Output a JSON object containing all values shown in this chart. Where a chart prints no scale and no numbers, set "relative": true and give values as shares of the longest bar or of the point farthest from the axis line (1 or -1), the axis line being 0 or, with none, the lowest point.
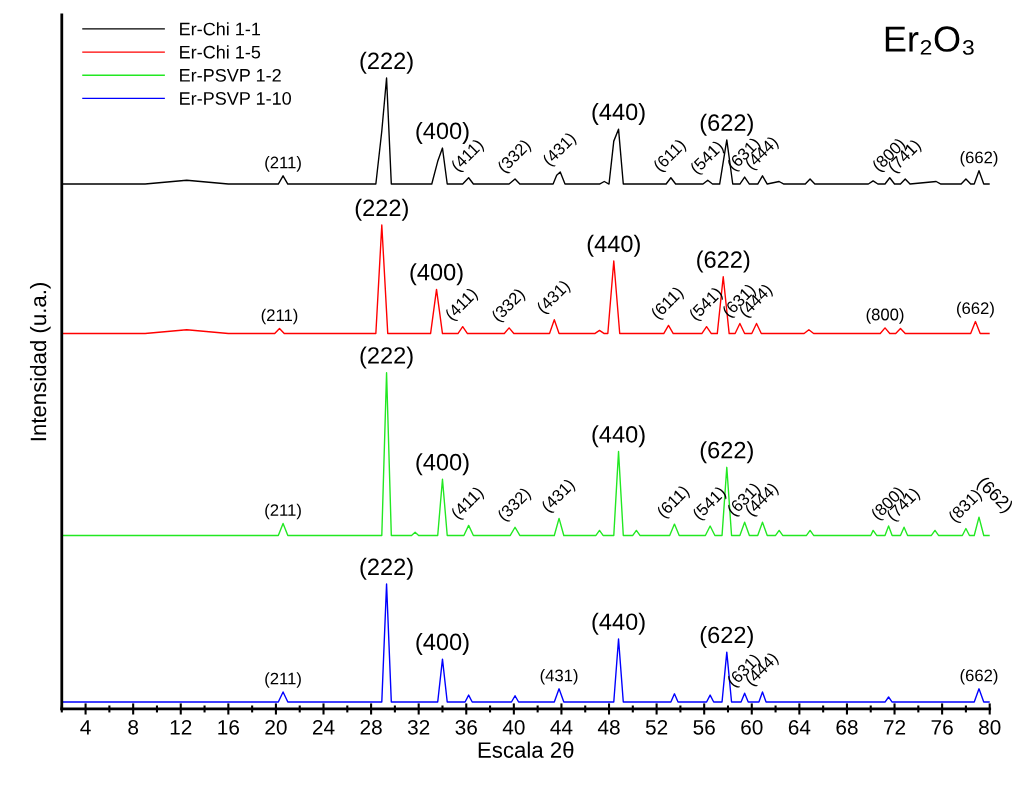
{
  "chart_data": {
    "type": "line",
    "title": "Er₂O₃",
    "xlabel": "Escala 2θ",
    "ylabel": "Intensidad (u.a.)",
    "relative": true,
    "tick_labels": "x",
    "legend": "top left",
    "grid": false,
    "marker": "none",
    "line_style": "solid",
    "xlim": [
      2,
      80
    ],
    "xticks": [
      {
        "value": 2,
        "label": null
      },
      4,
      {
        "value": 6,
        "label": null
      },
      8,
      {
        "value": 10,
        "label": null
      },
      12,
      {
        "value": 14,
        "label": null
      },
      16,
      {
        "value": 18,
        "label": null
      },
      20,
      {
        "value": 22,
        "label": null
      },
      24,
      {
        "value": 26,
        "label": null
      },
      28,
      {
        "value": 30,
        "label": null
      },
      32,
      {
        "value": 34,
        "label": null
      },
      36,
      {
        "value": 38,
        "label": null
      },
      40,
      {
        "value": 42,
        "label": null
      },
      44,
      {
        "value": 46,
        "label": null
      },
      48,
      {
        "value": 50,
        "label": null
      },
      52,
      {
        "value": 54,
        "label": null
      },
      56,
      {
        "value": 58,
        "label": null
      },
      60,
      {
        "value": 62,
        "label": null
      },
      64,
      {
        "value": 66,
        "label": null
      },
      68,
      {
        "value": 70,
        "label": null
      },
      72,
      {
        "value": 74,
        "label": null
      },
      76,
      {
        "value": 78,
        "label": null
      },
      80
    ],
    "series": [
      {
        "name": "Er-Chi 1-1",
        "color": "#000000",
        "x": [
          2,
          9,
          12.5,
          16,
          20.2,
          20.6,
          21.0,
          28.4,
          28.9,
          29.3,
          29.7,
          33.1,
          33.6,
          34.0,
          34.4,
          35.7,
          36.2,
          36.6,
          39.6,
          40.1,
          40.5,
          43.3,
          43.6,
          43.9,
          44.3,
          47.2,
          47.6,
          48.0,
          48.4,
          48.8,
          49.2,
          52.8,
          53.2,
          53.6,
          55.9,
          56.3,
          56.7,
          57.3,
          57.9,
          58.4,
          59.0,
          59.4,
          59.8,
          60.5,
          60.9,
          61.3,
          62.3,
          62.7,
          64.5,
          64.9,
          65.3,
          69.8,
          70.2,
          70.6,
          71.2,
          71.6,
          72.0,
          72.5,
          72.9,
          73.3,
          75.5,
          75.9,
          77.6,
          78.0,
          78.4,
          78.7,
          79.1,
          79.5,
          80
        ],
        "values": [
          0.832,
          0.832,
          0.838,
          0.832,
          0.832,
          0.845,
          0.832,
          0.832,
          0.916,
          1.0,
          0.832,
          0.832,
          0.868,
          0.889,
          0.832,
          0.832,
          0.842,
          0.832,
          0.832,
          0.84,
          0.832,
          0.832,
          0.846,
          0.851,
          0.832,
          0.832,
          0.836,
          0.832,
          0.9,
          0.919,
          0.832,
          0.832,
          0.842,
          0.832,
          0.832,
          0.838,
          0.832,
          0.832,
          0.902,
          0.832,
          0.832,
          0.843,
          0.832,
          0.832,
          0.845,
          0.832,
          0.836,
          0.832,
          0.832,
          0.84,
          0.832,
          0.832,
          0.837,
          0.832,
          0.832,
          0.842,
          0.832,
          0.832,
          0.84,
          0.832,
          0.836,
          0.832,
          0.832,
          0.84,
          0.832,
          0.832,
          0.853,
          0.832,
          0.832
        ]
      },
      {
        "name": "Er-Chi 1-5",
        "color": "#ff0000",
        "x": [
          2,
          9,
          12.5,
          16,
          19.9,
          20.3,
          20.7,
          28.4,
          28.9,
          29.4,
          33.0,
          33.5,
          34.0,
          35.3,
          35.7,
          36.1,
          39.2,
          39.6,
          40.0,
          43.0,
          43.4,
          43.8,
          46.8,
          47.2,
          47.6,
          47.9,
          48.4,
          48.9,
          52.6,
          53.0,
          53.4,
          55.8,
          56.2,
          56.6,
          57.1,
          57.6,
          58.1,
          58.6,
          59.0,
          59.4,
          60.0,
          60.4,
          60.8,
          64.4,
          64.8,
          65.2,
          70.8,
          71.2,
          71.6,
          72.1,
          72.5,
          72.9,
          78.4,
          78.8,
          79.2,
          80
        ],
        "values": [
          0.595,
          0.595,
          0.601,
          0.595,
          0.595,
          0.603,
          0.595,
          0.595,
          0.767,
          0.595,
          0.595,
          0.665,
          0.595,
          0.595,
          0.606,
          0.595,
          0.595,
          0.604,
          0.595,
          0.595,
          0.617,
          0.595,
          0.595,
          0.6,
          0.595,
          0.595,
          0.71,
          0.595,
          0.595,
          0.608,
          0.595,
          0.595,
          0.606,
          0.595,
          0.595,
          0.685,
          0.595,
          0.595,
          0.611,
          0.595,
          0.595,
          0.611,
          0.595,
          0.595,
          0.601,
          0.595,
          0.595,
          0.604,
          0.595,
          0.595,
          0.603,
          0.595,
          0.595,
          0.614,
          0.595,
          0.595
        ]
      },
      {
        "name": "Er-PSVP 1-2",
        "color": "#22e822",
        "x": [
          2,
          20.2,
          20.6,
          21.0,
          28.9,
          29.3,
          29.7,
          31.4,
          31.7,
          32.0,
          33.6,
          34.0,
          34.4,
          35.8,
          36.2,
          36.6,
          39.7,
          40.1,
          40.5,
          43.4,
          43.8,
          44.2,
          46.9,
          47.2,
          47.5,
          48.4,
          48.8,
          49.2,
          50.0,
          50.3,
          50.6,
          53.1,
          53.5,
          53.9,
          56.1,
          56.5,
          56.9,
          57.5,
          57.9,
          58.3,
          59.0,
          59.4,
          59.8,
          60.5,
          60.9,
          61.3,
          62.0,
          62.3,
          62.6,
          64.6,
          64.9,
          65.2,
          70.0,
          70.2,
          70.5,
          71.2,
          71.5,
          71.8,
          72.5,
          72.8,
          73.1,
          75.1,
          75.4,
          75.7,
          77.7,
          78.0,
          78.3,
          78.7,
          79.1,
          79.5,
          80
        ],
        "values": [
          0.275,
          0.275,
          0.294,
          0.275,
          0.275,
          0.533,
          0.275,
          0.275,
          0.28,
          0.275,
          0.275,
          0.364,
          0.275,
          0.275,
          0.291,
          0.275,
          0.275,
          0.288,
          0.275,
          0.275,
          0.302,
          0.275,
          0.275,
          0.283,
          0.275,
          0.275,
          0.408,
          0.275,
          0.275,
          0.283,
          0.275,
          0.275,
          0.293,
          0.275,
          0.275,
          0.29,
          0.275,
          0.275,
          0.383,
          0.275,
          0.275,
          0.296,
          0.275,
          0.275,
          0.296,
          0.275,
          0.275,
          0.283,
          0.275,
          0.275,
          0.283,
          0.275,
          0.275,
          0.283,
          0.275,
          0.275,
          0.29,
          0.275,
          0.275,
          0.288,
          0.275,
          0.275,
          0.283,
          0.275,
          0.275,
          0.286,
          0.275,
          0.275,
          0.304,
          0.275,
          0.275
        ]
      },
      {
        "name": "Er-PSVP 1-10",
        "color": "#0000ff",
        "x": [
          2,
          20.2,
          20.6,
          21.0,
          28.9,
          29.3,
          29.7,
          33.6,
          34.0,
          34.4,
          35.9,
          36.2,
          36.5,
          39.8,
          40.1,
          40.4,
          43.4,
          43.8,
          44.2,
          48.4,
          48.8,
          49.2,
          53.2,
          53.5,
          53.8,
          56.2,
          56.5,
          56.8,
          57.5,
          57.9,
          58.3,
          59.1,
          59.4,
          59.7,
          60.6,
          60.9,
          61.2,
          71.2,
          71.5,
          71.8,
          78.7,
          79.1,
          79.5,
          80
        ],
        "values": [
          0.011,
          0.011,
          0.027,
          0.011,
          0.011,
          0.198,
          0.011,
          0.011,
          0.079,
          0.011,
          0.011,
          0.022,
          0.011,
          0.011,
          0.021,
          0.011,
          0.011,
          0.032,
          0.011,
          0.011,
          0.111,
          0.011,
          0.011,
          0.024,
          0.011,
          0.011,
          0.022,
          0.011,
          0.011,
          0.09,
          0.011,
          0.011,
          0.025,
          0.011,
          0.011,
          0.027,
          0.011,
          0.011,
          0.019,
          0.011,
          0.011,
          0.032,
          0.011,
          0.011
        ]
      }
    ],
    "annotations": [
      {
        "text": "(211)",
        "x": 20.6,
        "y": 0.845
      },
      {
        "text": "(222)",
        "x": 29.3,
        "y": 1.0
      },
      {
        "text": "(400)",
        "x": 34.0,
        "y": 0.889
      },
      {
        "text": "(411)",
        "x": 36.2,
        "y": 0.842
      },
      {
        "text": "(332)",
        "x": 40.1,
        "y": 0.84
      },
      {
        "text": "(431)",
        "x": 43.9,
        "y": 0.851
      },
      {
        "text": "(440)",
        "x": 48.8,
        "y": 0.919
      },
      {
        "text": "(611)",
        "x": 53.2,
        "y": 0.842
      },
      {
        "text": "(541)",
        "x": 56.3,
        "y": 0.838
      },
      {
        "text": "(622)",
        "x": 57.9,
        "y": 0.902
      },
      {
        "text": "(631)",
        "x": 59.4,
        "y": 0.843
      },
      {
        "text": "(444)",
        "x": 60.9,
        "y": 0.845
      },
      {
        "text": "(800)",
        "x": 71.6,
        "y": 0.842
      },
      {
        "text": "(741)",
        "x": 72.9,
        "y": 0.84
      },
      {
        "text": "(662)",
        "x": 79.1,
        "y": 0.853
      },
      {
        "text": "(211)",
        "x": 20.3,
        "y": 0.603
      },
      {
        "text": "(222)",
        "x": 28.9,
        "y": 0.767
      },
      {
        "text": "(400)",
        "x": 33.5,
        "y": 0.665
      },
      {
        "text": "(411)",
        "x": 35.7,
        "y": 0.606
      },
      {
        "text": "(332)",
        "x": 39.6,
        "y": 0.604
      },
      {
        "text": "(431)",
        "x": 43.4,
        "y": 0.617
      },
      {
        "text": "(440)",
        "x": 48.4,
        "y": 0.71
      },
      {
        "text": "(611)",
        "x": 53.0,
        "y": 0.608
      },
      {
        "text": "(541)",
        "x": 56.2,
        "y": 0.606
      },
      {
        "text": "(622)",
        "x": 57.6,
        "y": 0.685
      },
      {
        "text": "(631)",
        "x": 59.0,
        "y": 0.611
      },
      {
        "text": "(444)",
        "x": 60.4,
        "y": 0.611
      },
      {
        "text": "(800)",
        "x": 71.2,
        "y": 0.604
      },
      {
        "text": "(662)",
        "x": 78.8,
        "y": 0.614
      },
      {
        "text": "(211)",
        "x": 20.6,
        "y": 0.294
      },
      {
        "text": "(222)",
        "x": 29.3,
        "y": 0.533
      },
      {
        "text": "(400)",
        "x": 34.0,
        "y": 0.364
      },
      {
        "text": "(411)",
        "x": 36.2,
        "y": 0.291
      },
      {
        "text": "(332)",
        "x": 40.1,
        "y": 0.288
      },
      {
        "text": "(431)",
        "x": 43.8,
        "y": 0.302
      },
      {
        "text": "(440)",
        "x": 48.8,
        "y": 0.408
      },
      {
        "text": "(611)",
        "x": 53.5,
        "y": 0.293
      },
      {
        "text": "(541)",
        "x": 56.5,
        "y": 0.29
      },
      {
        "text": "(622)",
        "x": 57.9,
        "y": 0.383
      },
      {
        "text": "(631)",
        "x": 59.4,
        "y": 0.296
      },
      {
        "text": "(444)",
        "x": 60.9,
        "y": 0.296
      },
      {
        "text": "(800)",
        "x": 71.5,
        "y": 0.29
      },
      {
        "text": "(741)",
        "x": 72.8,
        "y": 0.288
      },
      {
        "text": "(831)",
        "x": 78.0,
        "y": 0.286
      },
      {
        "text": "(662)",
        "x": 79.1,
        "y": 0.304
      },
      {
        "text": "(211)",
        "x": 20.6,
        "y": 0.027
      },
      {
        "text": "(222)",
        "x": 29.3,
        "y": 0.198
      },
      {
        "text": "(400)",
        "x": 34.0,
        "y": 0.079
      },
      {
        "text": "(431)",
        "x": 43.8,
        "y": 0.032
      },
      {
        "text": "(440)",
        "x": 48.8,
        "y": 0.111
      },
      {
        "text": "(622)",
        "x": 57.9,
        "y": 0.09
      },
      {
        "text": "(631)",
        "x": 59.4,
        "y": 0.025
      },
      {
        "text": "(444)",
        "x": 60.9,
        "y": 0.027
      },
      {
        "text": "(662)",
        "x": 79.1,
        "y": 0.032
      }
    ]
  }
}
